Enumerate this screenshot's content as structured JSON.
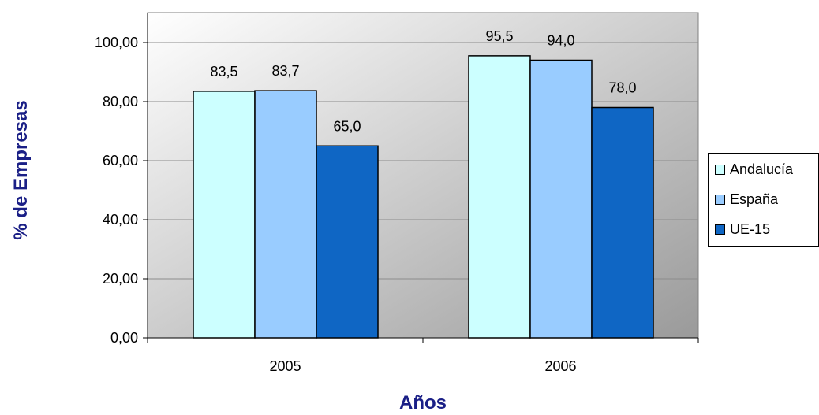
{
  "chart_data": {
    "type": "bar",
    "categories": [
      "2005",
      "2006"
    ],
    "series": [
      {
        "name": "Andalucía",
        "values": [
          83.5,
          95.5
        ],
        "labels": [
          "83,5",
          "95,5"
        ],
        "color": "#ccffff"
      },
      {
        "name": "España",
        "values": [
          83.7,
          94.0
        ],
        "labels": [
          "83,7",
          "94,0"
        ],
        "color": "#99ccff"
      },
      {
        "name": "UE-15",
        "values": [
          65.0,
          78.0
        ],
        "labels": [
          "65,0",
          "78,0"
        ],
        "color": "#0f66c4"
      }
    ],
    "xlabel": "Años",
    "ylabel": "% de Empresas",
    "ylim": [
      0,
      100
    ],
    "yticks": [
      0,
      20,
      40,
      60,
      80,
      100
    ],
    "ytick_labels": [
      "0,00",
      "20,00",
      "40,00",
      "60,00",
      "80,00",
      "100,00"
    ],
    "grid": true,
    "legend_position": "right",
    "colors": {
      "title": "#1a1f86",
      "plot_background_from": "#ffffff",
      "plot_background_to": "#9a9a9a"
    }
  }
}
